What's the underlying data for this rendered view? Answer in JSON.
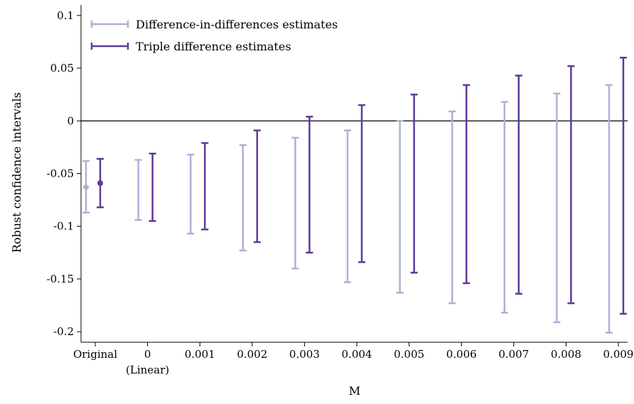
{
  "chart_data": {
    "type": "errorbar",
    "xlabel": "M",
    "ylabel": "Robust confidence intervals",
    "ylim": [
      -0.21,
      0.11
    ],
    "y_ticks": [
      0.1,
      0.05,
      0,
      -0.05,
      -0.1,
      -0.15,
      -0.2
    ],
    "y_tick_labels": [
      "0.1",
      "0.05",
      "0",
      "-0.05",
      "-0.1",
      "-0.15",
      "-0.2"
    ],
    "categories": [
      "Original",
      "0",
      "0.001",
      "0.002",
      "0.003",
      "0.004",
      "0.005",
      "0.006",
      "0.007",
      "0.008",
      "0.009"
    ],
    "category_sublabels": [
      "",
      "(Linear)",
      "",
      "",
      "",
      "",
      "",
      "",
      "",
      "",
      ""
    ],
    "reference_line_y": 0,
    "grid": false,
    "legend_position": "top-left",
    "colors": {
      "did": "#b3aed6",
      "triple": "#5d3a9b",
      "axis": "#000000"
    },
    "series": [
      {
        "name": "Difference-in-differences estimates",
        "color": "#b3aed6",
        "point": -0.063,
        "lower": [
          -0.087,
          -0.094,
          -0.107,
          -0.123,
          -0.14,
          -0.153,
          -0.163,
          -0.173,
          -0.182,
          -0.191,
          -0.201
        ],
        "upper": [
          -0.038,
          -0.037,
          -0.032,
          -0.023,
          -0.016,
          -0.009,
          0.0,
          0.009,
          0.018,
          0.026,
          0.034
        ]
      },
      {
        "name": "Triple difference estimates",
        "color": "#5d3a9b",
        "point": -0.059,
        "lower": [
          -0.082,
          -0.095,
          -0.103,
          -0.115,
          -0.125,
          -0.134,
          -0.144,
          -0.154,
          -0.164,
          -0.173,
          -0.183
        ],
        "upper": [
          -0.036,
          -0.031,
          -0.021,
          -0.009,
          0.004,
          0.015,
          0.025,
          0.034,
          0.043,
          0.052,
          0.06
        ]
      }
    ]
  }
}
